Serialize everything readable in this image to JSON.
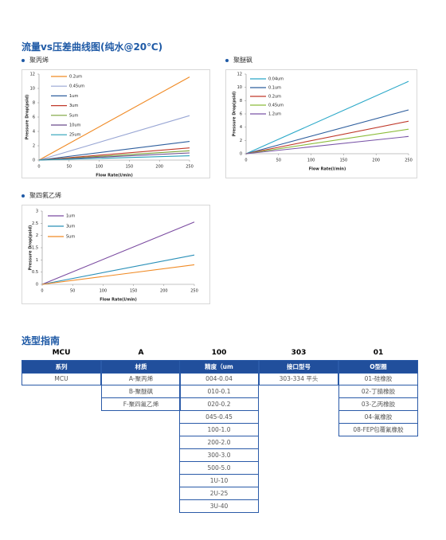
{
  "header": {
    "title": "流量vs压差曲线图(纯水@20℃)"
  },
  "chart_data": [
    {
      "type": "line",
      "title": "聚丙烯",
      "x_label": "Flow Rate(l/min)",
      "y_label": "Pressure Drop(psid)",
      "x": [
        0,
        250
      ],
      "xlim": [
        0,
        250
      ],
      "xticks": [
        0,
        50,
        100,
        150,
        200,
        250
      ],
      "ylim": [
        0,
        12
      ],
      "yticks": [
        0,
        2,
        4,
        6,
        8,
        10,
        12
      ],
      "grid": false,
      "series": [
        {
          "name": "0.2um",
          "color": "#f08a24",
          "values": [
            0,
            11.6
          ]
        },
        {
          "name": "0.45um",
          "color": "#98a6d4",
          "values": [
            0,
            6.2
          ]
        },
        {
          "name": "1um",
          "color": "#2f5f9e",
          "values": [
            0,
            2.6
          ]
        },
        {
          "name": "3um",
          "color": "#c0392b",
          "values": [
            0,
            1.7
          ]
        },
        {
          "name": "5um",
          "color": "#7aa33a",
          "values": [
            0,
            1.3
          ]
        },
        {
          "name": "10um",
          "color": "#6a4a8c",
          "values": [
            0,
            1.0
          ]
        },
        {
          "name": "25um",
          "color": "#2aa0b8",
          "values": [
            0,
            0.6
          ]
        }
      ]
    },
    {
      "type": "line",
      "title": "聚醚砜",
      "x_label": "Flow Rate(l/min)",
      "y_label": "Pressure Drop(psid)",
      "x": [
        0,
        250
      ],
      "xlim": [
        0,
        250
      ],
      "xticks": [
        0,
        50,
        100,
        150,
        200,
        250
      ],
      "ylim": [
        0,
        12
      ],
      "yticks": [
        0,
        2,
        4,
        6,
        8,
        10,
        12
      ],
      "grid": false,
      "series": [
        {
          "name": "0.04um",
          "color": "#2aa8c8",
          "values": [
            0,
            10.9
          ]
        },
        {
          "name": "0.1um",
          "color": "#2f5f9e",
          "values": [
            0,
            6.6
          ]
        },
        {
          "name": "0.2um",
          "color": "#c0392b",
          "values": [
            0,
            4.9
          ]
        },
        {
          "name": "0.45um",
          "color": "#8cbc3a",
          "values": [
            0,
            3.7
          ]
        },
        {
          "name": "1.2um",
          "color": "#7a55a8",
          "values": [
            0,
            2.6
          ]
        }
      ]
    },
    {
      "type": "line",
      "title": "聚四氟乙烯",
      "x_label": "Flow Rate(l/min)",
      "y_label": "Pressure Drop(psid)",
      "x": [
        0,
        250
      ],
      "xlim": [
        0,
        250
      ],
      "xticks": [
        0,
        50,
        100,
        150,
        200,
        250
      ],
      "ylim": [
        0,
        3
      ],
      "yticks": [
        0,
        0.5,
        1,
        1.5,
        2,
        2.5,
        3
      ],
      "grid": false,
      "series": [
        {
          "name": "1um",
          "color": "#7a4aa0",
          "values": [
            0,
            2.55
          ]
        },
        {
          "name": "3um",
          "color": "#2a90b8",
          "values": [
            0,
            1.2
          ]
        },
        {
          "name": "5um",
          "color": "#f08a24",
          "values": [
            0,
            0.8
          ]
        }
      ]
    }
  ],
  "guide": {
    "title": "选型指南",
    "codes": [
      "MCU",
      "A",
      "100",
      "303",
      "01"
    ],
    "columns": [
      {
        "header": "系列",
        "items": [
          "MCU"
        ]
      },
      {
        "header": "材质",
        "items": [
          "A-聚丙烯",
          "B-聚醚砜",
          "F-聚四氟乙烯"
        ]
      },
      {
        "header": "精度（um",
        "items": [
          "004-0.04",
          "010-0.1",
          "020-0.2",
          "045-0.45",
          "100-1.0",
          "200-2.0",
          "300-3.0",
          "500-5.0",
          "1U-10",
          "2U-25",
          "3U-40"
        ]
      },
      {
        "header": "接口型号",
        "items": [
          "303-334 平头"
        ]
      },
      {
        "header": "O型圈",
        "items": [
          "01-硅橡胶",
          "02-丁腈橡胶",
          "03-乙丙橡胶",
          "04-氟橡胶",
          "08-FEP包覆氟橡胶"
        ]
      }
    ]
  }
}
